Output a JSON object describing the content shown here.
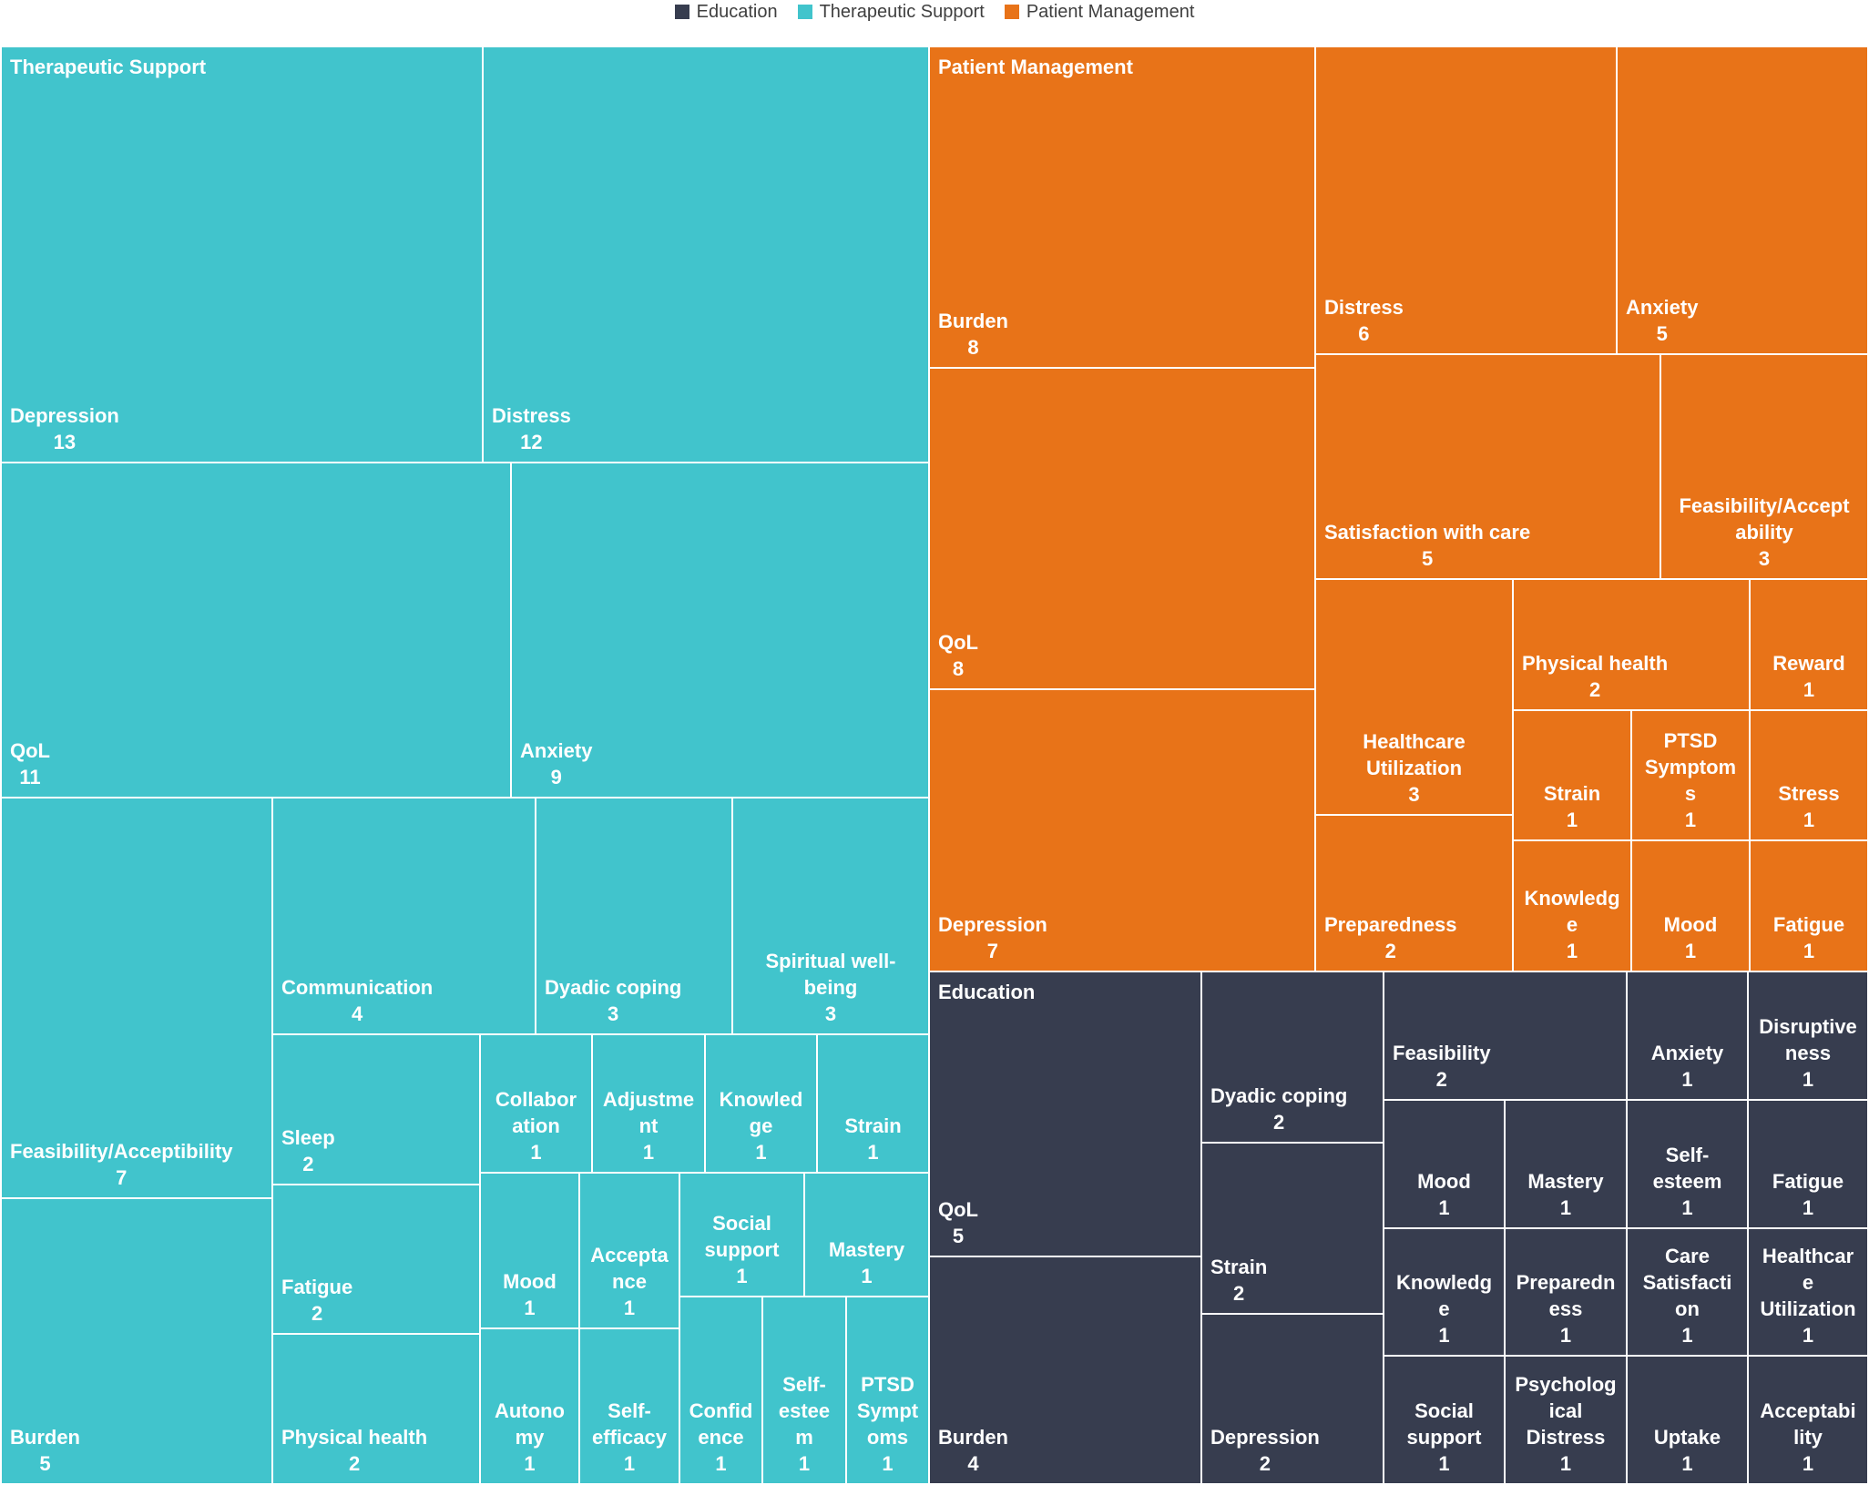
{
  "legend": [
    {
      "label": "Education",
      "color": "#373d4f"
    },
    {
      "label": "Therapeutic Support",
      "color": "#41c4cc"
    },
    {
      "label": "Patient Management",
      "color": "#e87318"
    }
  ],
  "chart_data": {
    "type": "treemap",
    "title": "",
    "groups": [
      {
        "name": "Therapeutic Support",
        "color": "#41c4cc",
        "items": [
          {
            "label": [
              "Depression"
            ],
            "value": 13
          },
          {
            "label": [
              "Distress"
            ],
            "value": 12
          },
          {
            "label": [
              "QoL"
            ],
            "value": 11
          },
          {
            "label": [
              "Anxiety"
            ],
            "value": 9
          },
          {
            "label": [
              "Feasibility/Acceptibility"
            ],
            "value": 7
          },
          {
            "label": [
              "Burden"
            ],
            "value": 5
          },
          {
            "label": [
              "Communication"
            ],
            "value": 4
          },
          {
            "label": [
              "Dyadic coping"
            ],
            "value": 3
          },
          {
            "label": [
              "Spiritual well-",
              "being"
            ],
            "value": 3
          },
          {
            "label": [
              "Sleep"
            ],
            "value": 2
          },
          {
            "label": [
              "Fatigue"
            ],
            "value": 2
          },
          {
            "label": [
              "Physical health"
            ],
            "value": 2
          },
          {
            "label": [
              "Collabor",
              "ation"
            ],
            "value": 1
          },
          {
            "label": [
              "Adjustme",
              "nt"
            ],
            "value": 1
          },
          {
            "label": [
              "Knowled",
              "ge"
            ],
            "value": 1
          },
          {
            "label": [
              "Strain"
            ],
            "value": 1
          },
          {
            "label": [
              "Mood"
            ],
            "value": 1
          },
          {
            "label": [
              "Accepta",
              "nce"
            ],
            "value": 1
          },
          {
            "label": [
              "Social",
              "support"
            ],
            "value": 1
          },
          {
            "label": [
              "Mastery"
            ],
            "value": 1
          },
          {
            "label": [
              "Autono",
              "my"
            ],
            "value": 1
          },
          {
            "label": [
              "Self-",
              "efficacy"
            ],
            "value": 1
          },
          {
            "label": [
              "Confid",
              "ence"
            ],
            "value": 1
          },
          {
            "label": [
              "Self-",
              "estee",
              "m"
            ],
            "value": 1
          },
          {
            "label": [
              "PTSD",
              "Sympt",
              "oms"
            ],
            "value": 1
          }
        ]
      },
      {
        "name": "Patient Management",
        "color": "#e87318",
        "items": [
          {
            "label": [
              "Burden"
            ],
            "value": 8
          },
          {
            "label": [
              "QoL"
            ],
            "value": 8
          },
          {
            "label": [
              "Depression"
            ],
            "value": 7
          },
          {
            "label": [
              "Distress"
            ],
            "value": 6
          },
          {
            "label": [
              "Anxiety"
            ],
            "value": 5
          },
          {
            "label": [
              "Satisfaction with care"
            ],
            "value": 5
          },
          {
            "label": [
              "Feasibility/Accept",
              "ability"
            ],
            "value": 3
          },
          {
            "label": [
              "Healthcare",
              "Utilization"
            ],
            "value": 3
          },
          {
            "label": [
              "Preparedness"
            ],
            "value": 2
          },
          {
            "label": [
              "Physical health"
            ],
            "value": 2
          },
          {
            "label": [
              "Reward"
            ],
            "value": 1
          },
          {
            "label": [
              "Strain"
            ],
            "value": 1
          },
          {
            "label": [
              "PTSD",
              "Symptom",
              "s"
            ],
            "value": 1
          },
          {
            "label": [
              "Stress"
            ],
            "value": 1
          },
          {
            "label": [
              "Knowledg",
              "e"
            ],
            "value": 1
          },
          {
            "label": [
              "Mood"
            ],
            "value": 1
          },
          {
            "label": [
              "Fatigue"
            ],
            "value": 1
          }
        ]
      },
      {
        "name": "Education",
        "color": "#373d4f",
        "items": [
          {
            "label": [
              "QoL"
            ],
            "value": 5
          },
          {
            "label": [
              "Burden"
            ],
            "value": 4
          },
          {
            "label": [
              "Dyadic coping"
            ],
            "value": 2
          },
          {
            "label": [
              "Strain"
            ],
            "value": 2
          },
          {
            "label": [
              "Depression"
            ],
            "value": 2
          },
          {
            "label": [
              "Feasibility"
            ],
            "value": 2
          },
          {
            "label": [
              "Anxiety"
            ],
            "value": 1
          },
          {
            "label": [
              "Disruptive",
              "ness"
            ],
            "value": 1
          },
          {
            "label": [
              "Mood"
            ],
            "value": 1
          },
          {
            "label": [
              "Mastery"
            ],
            "value": 1
          },
          {
            "label": [
              "Self-",
              "esteem"
            ],
            "value": 1
          },
          {
            "label": [
              "Fatigue"
            ],
            "value": 1
          },
          {
            "label": [
              "Knowledg",
              "e"
            ],
            "value": 1
          },
          {
            "label": [
              "Preparedn",
              "ess"
            ],
            "value": 1
          },
          {
            "label": [
              "Care",
              "Satisfacti",
              "on"
            ],
            "value": 1
          },
          {
            "label": [
              "Healthcar",
              "e",
              "Utilization"
            ],
            "value": 1
          },
          {
            "label": [
              "Social",
              "support"
            ],
            "value": 1
          },
          {
            "label": [
              "Psycholog",
              "ical",
              "Distress"
            ],
            "value": 1
          },
          {
            "label": [
              "Uptake"
            ],
            "value": 1
          },
          {
            "label": [
              "Acceptabi",
              "lity"
            ],
            "value": 1
          }
        ]
      }
    ]
  }
}
